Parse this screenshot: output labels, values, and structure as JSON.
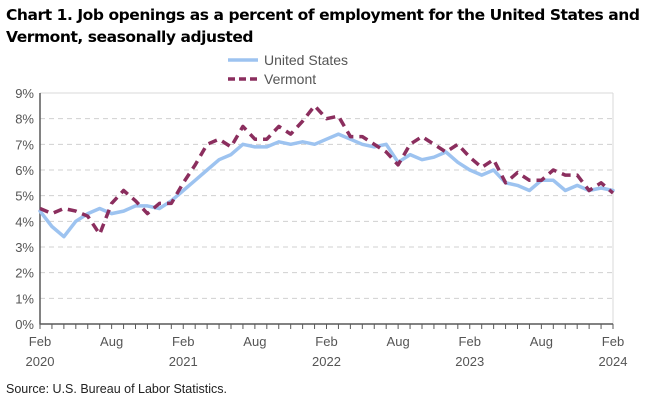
{
  "title": "Chart 1. Job openings as a percent of employment for the United States and Vermont, seasonally adjusted",
  "source": "Source: U.S. Bureau of Labor Statistics.",
  "chart_data": {
    "type": "line",
    "title": "Chart 1. Job openings as a percent of employment for the United States and Vermont, seasonally adjusted",
    "xlabel": "",
    "ylabel": "",
    "ylim": [
      0,
      9
    ],
    "yticks": [
      "0%",
      "1%",
      "2%",
      "3%",
      "4%",
      "5%",
      "6%",
      "7%",
      "8%",
      "9%"
    ],
    "xtick_labels": [
      {
        "month": "Feb",
        "year": "2020"
      },
      {
        "month": "Aug",
        "year": ""
      },
      {
        "month": "Feb",
        "year": "2021"
      },
      {
        "month": "Aug",
        "year": ""
      },
      {
        "month": "Feb",
        "year": "2022"
      },
      {
        "month": "Aug",
        "year": ""
      },
      {
        "month": "Feb",
        "year": "2023"
      },
      {
        "month": "Aug",
        "year": ""
      },
      {
        "month": "Feb",
        "year": "2024"
      }
    ],
    "x_range": [
      "Feb 2020",
      "Feb 2024"
    ],
    "frequency": "monthly",
    "grid": "horizontal dashed",
    "legend": "top-center",
    "series": [
      {
        "name": "United States",
        "style": "solid",
        "color": "#9dc3f0",
        "values": [
          4.4,
          3.8,
          3.4,
          4.0,
          4.3,
          4.5,
          4.3,
          4.4,
          4.6,
          4.6,
          4.5,
          4.8,
          5.2,
          5.6,
          6.0,
          6.4,
          6.6,
          7.0,
          6.9,
          6.9,
          7.1,
          7.0,
          7.1,
          7.0,
          7.2,
          7.4,
          7.2,
          7.0,
          6.9,
          7.0,
          6.3,
          6.6,
          6.4,
          6.5,
          6.7,
          6.3,
          6.0,
          5.8,
          6.0,
          5.5,
          5.4,
          5.2,
          5.6,
          5.6,
          5.2,
          5.4,
          5.2,
          5.3,
          5.2
        ]
      },
      {
        "name": "Vermont",
        "style": "dashed",
        "color": "#8b2e5e",
        "values": [
          4.5,
          4.3,
          4.5,
          4.4,
          4.2,
          3.5,
          4.7,
          5.2,
          4.8,
          4.3,
          4.7,
          4.7,
          5.5,
          6.2,
          7.0,
          7.2,
          6.9,
          7.7,
          7.2,
          7.2,
          7.7,
          7.4,
          7.9,
          8.5,
          8.0,
          8.1,
          7.3,
          7.3,
          7.0,
          6.7,
          6.2,
          7.0,
          7.3,
          7.0,
          6.7,
          7.0,
          6.5,
          6.1,
          6.4,
          5.5,
          5.9,
          5.6,
          5.6,
          6.0,
          5.8,
          5.8,
          5.2,
          5.5,
          5.1
        ]
      }
    ]
  }
}
